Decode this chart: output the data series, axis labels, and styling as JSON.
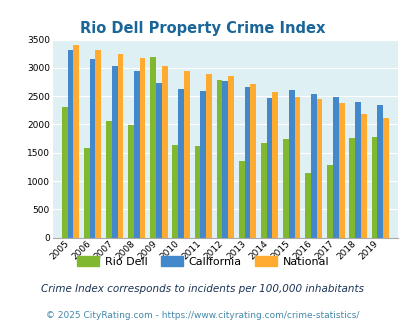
{
  "title": "Rio Dell Property Crime Index",
  "plot_years": [
    2005,
    2006,
    2007,
    2008,
    2009,
    2010,
    2011,
    2012,
    2013,
    2014,
    2015,
    2016,
    2017,
    2018,
    2019
  ],
  "rio_dell": [
    2300,
    1580,
    2060,
    1990,
    3190,
    1630,
    1620,
    2780,
    1360,
    1670,
    1750,
    1150,
    1280,
    1760,
    1770
  ],
  "california": [
    3320,
    3150,
    3030,
    2950,
    2730,
    2620,
    2590,
    2770,
    2670,
    2460,
    2610,
    2540,
    2490,
    2400,
    2340
  ],
  "national": [
    3400,
    3320,
    3240,
    3180,
    3040,
    2950,
    2890,
    2850,
    2720,
    2580,
    2490,
    2450,
    2380,
    2190,
    2110
  ],
  "all_tick_years": [
    2004,
    2005,
    2006,
    2007,
    2008,
    2009,
    2010,
    2011,
    2012,
    2013,
    2014,
    2015,
    2016,
    2017,
    2018,
    2019,
    2020
  ],
  "rio_dell_color": "#80b830",
  "california_color": "#4488cc",
  "national_color": "#ffaa30",
  "bg_color": "#dff0f4",
  "ylim": [
    0,
    3500
  ],
  "yticks": [
    0,
    500,
    1000,
    1500,
    2000,
    2500,
    3000,
    3500
  ],
  "subtitle": "Crime Index corresponds to incidents per 100,000 inhabitants",
  "footer": "© 2025 CityRating.com - https://www.cityrating.com/crime-statistics/",
  "title_color": "#1a6699",
  "subtitle_color": "#1a3355",
  "footer_color": "#4488aa",
  "legend_labels": [
    "Rio Dell",
    "California",
    "National"
  ],
  "bar_width": 0.26
}
